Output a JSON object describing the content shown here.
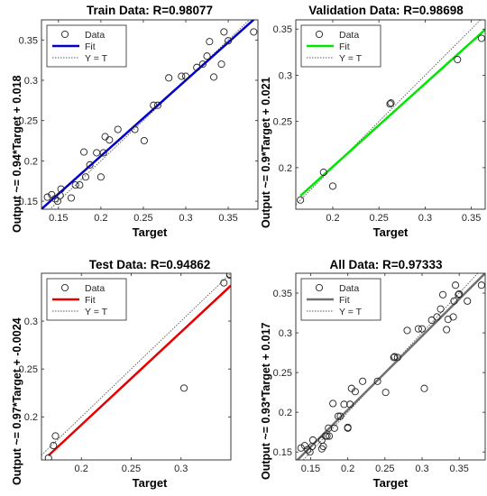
{
  "chart_data": [
    {
      "type": "scatter",
      "title": "Train Data: R=0.98077",
      "xlabel": "Target",
      "ylabel": "Output ~= 0.94*Target + 0.018",
      "xlim": [
        0.13,
        0.385
      ],
      "ylim": [
        0.14,
        0.375
      ],
      "xticks": [
        0.15,
        0.2,
        0.25,
        0.3,
        0.35
      ],
      "yticks": [
        0.15,
        0.2,
        0.25,
        0.3,
        0.35
      ],
      "fit": {
        "slope": 0.94,
        "intercept": 0.018,
        "color": "#0000c8"
      },
      "legend": {
        "placement": "top-left",
        "entries": [
          "Data",
          "Fit",
          "Y = T"
        ]
      },
      "points": [
        [
          0.137,
          0.155
        ],
        [
          0.142,
          0.158
        ],
        [
          0.146,
          0.153
        ],
        [
          0.149,
          0.15
        ],
        [
          0.152,
          0.157
        ],
        [
          0.153,
          0.165
        ],
        [
          0.165,
          0.154
        ],
        [
          0.17,
          0.17
        ],
        [
          0.175,
          0.17
        ],
        [
          0.18,
          0.211
        ],
        [
          0.182,
          0.18
        ],
        [
          0.187,
          0.195
        ],
        [
          0.195,
          0.21
        ],
        [
          0.2,
          0.18
        ],
        [
          0.203,
          0.21
        ],
        [
          0.205,
          0.23
        ],
        [
          0.21,
          0.226
        ],
        [
          0.22,
          0.239
        ],
        [
          0.24,
          0.239
        ],
        [
          0.251,
          0.225
        ],
        [
          0.262,
          0.269
        ],
        [
          0.267,
          0.269
        ],
        [
          0.28,
          0.303
        ],
        [
          0.295,
          0.305
        ],
        [
          0.3,
          0.305
        ],
        [
          0.313,
          0.316
        ],
        [
          0.32,
          0.32
        ],
        [
          0.325,
          0.33
        ],
        [
          0.328,
          0.348
        ],
        [
          0.333,
          0.304
        ],
        [
          0.342,
          0.32
        ],
        [
          0.345,
          0.36
        ],
        [
          0.35,
          0.349
        ],
        [
          0.38,
          0.36
        ]
      ]
    },
    {
      "type": "scatter",
      "title": "Validation Data: R=0.98698",
      "xlabel": "Target",
      "ylabel": "Output ~= 0.9*Target + 0.021",
      "xlim": [
        0.16,
        0.365
      ],
      "ylim": [
        0.155,
        0.36
      ],
      "xticks": [
        0.2,
        0.25,
        0.3,
        0.35
      ],
      "yticks": [
        0.2,
        0.25,
        0.3,
        0.35
      ],
      "fit": {
        "slope": 0.9,
        "intercept": 0.021,
        "color": "#00e600"
      },
      "legend": {
        "placement": "top-left",
        "entries": [
          "Data",
          "Fit",
          "Y = T"
        ]
      },
      "points": [
        [
          0.165,
          0.165
        ],
        [
          0.19,
          0.195
        ],
        [
          0.2,
          0.18
        ],
        [
          0.262,
          0.269
        ],
        [
          0.263,
          0.27
        ],
        [
          0.335,
          0.317
        ],
        [
          0.361,
          0.34
        ]
      ]
    },
    {
      "type": "scatter",
      "title": "Test Data: R=0.94862",
      "xlabel": "Target",
      "ylabel": "Output ~= 0.97*Target + -0.0024",
      "xlim": [
        0.16,
        0.35
      ],
      "ylim": [
        0.155,
        0.35
      ],
      "xticks": [
        0.2,
        0.25,
        0.3
      ],
      "yticks": [
        0.2,
        0.25,
        0.3
      ],
      "fit": {
        "slope": 0.97,
        "intercept": -0.0024,
        "color": "#e60000"
      },
      "legend": {
        "placement": "top-left",
        "entries": [
          "Data",
          "Fit",
          "Y = T"
        ]
      },
      "points": [
        [
          0.167,
          0.157
        ],
        [
          0.172,
          0.17
        ],
        [
          0.174,
          0.18
        ],
        [
          0.303,
          0.23
        ],
        [
          0.343,
          0.34
        ],
        [
          0.349,
          0.348
        ],
        [
          0.349,
          0.349
        ]
      ]
    },
    {
      "type": "scatter",
      "title": "All Data: R=0.97333",
      "xlabel": "Target",
      "ylabel": "Output ~= 0.93*Target + 0.017",
      "xlim": [
        0.13,
        0.385
      ],
      "ylim": [
        0.14,
        0.375
      ],
      "xticks": [
        0.15,
        0.2,
        0.25,
        0.3,
        0.35
      ],
      "yticks": [
        0.15,
        0.2,
        0.25,
        0.3,
        0.35
      ],
      "fit": {
        "slope": 0.93,
        "intercept": 0.017,
        "color": "#707070"
      },
      "legend": {
        "placement": "top-left",
        "entries": [
          "Data",
          "Fit",
          "Y = T"
        ]
      },
      "points": [
        [
          0.137,
          0.155
        ],
        [
          0.142,
          0.158
        ],
        [
          0.146,
          0.153
        ],
        [
          0.149,
          0.15
        ],
        [
          0.152,
          0.157
        ],
        [
          0.153,
          0.165
        ],
        [
          0.165,
          0.154
        ],
        [
          0.165,
          0.165
        ],
        [
          0.167,
          0.157
        ],
        [
          0.17,
          0.17
        ],
        [
          0.172,
          0.17
        ],
        [
          0.174,
          0.18
        ],
        [
          0.175,
          0.17
        ],
        [
          0.18,
          0.211
        ],
        [
          0.182,
          0.18
        ],
        [
          0.187,
          0.195
        ],
        [
          0.19,
          0.195
        ],
        [
          0.195,
          0.21
        ],
        [
          0.2,
          0.18
        ],
        [
          0.2,
          0.181
        ],
        [
          0.203,
          0.21
        ],
        [
          0.205,
          0.23
        ],
        [
          0.21,
          0.226
        ],
        [
          0.22,
          0.239
        ],
        [
          0.24,
          0.239
        ],
        [
          0.251,
          0.225
        ],
        [
          0.262,
          0.269
        ],
        [
          0.263,
          0.27
        ],
        [
          0.267,
          0.269
        ],
        [
          0.28,
          0.303
        ],
        [
          0.295,
          0.305
        ],
        [
          0.3,
          0.305
        ],
        [
          0.303,
          0.23
        ],
        [
          0.313,
          0.316
        ],
        [
          0.32,
          0.32
        ],
        [
          0.325,
          0.33
        ],
        [
          0.328,
          0.348
        ],
        [
          0.333,
          0.304
        ],
        [
          0.335,
          0.317
        ],
        [
          0.342,
          0.32
        ],
        [
          0.343,
          0.34
        ],
        [
          0.345,
          0.36
        ],
        [
          0.349,
          0.348
        ],
        [
          0.35,
          0.349
        ],
        [
          0.361,
          0.34
        ],
        [
          0.38,
          0.36
        ]
      ]
    }
  ]
}
